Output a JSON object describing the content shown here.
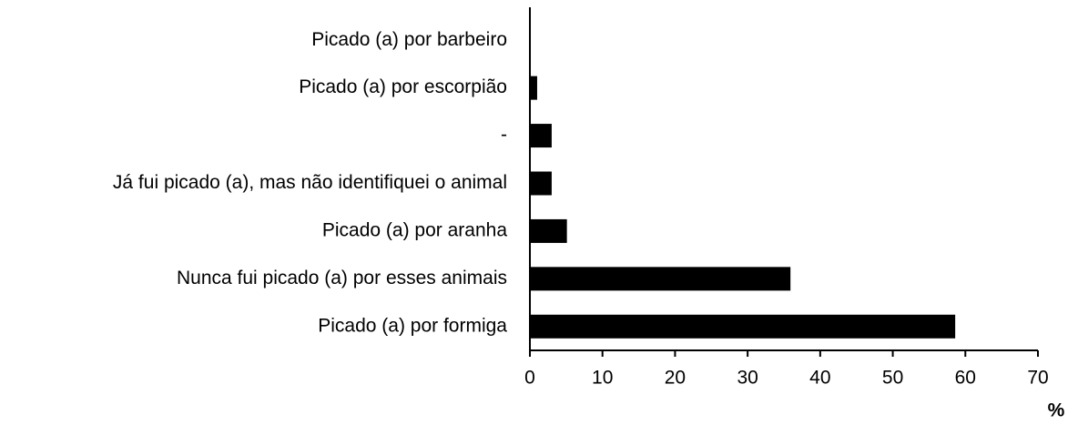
{
  "chart_data": {
    "type": "barh",
    "categories": [
      "Picado (a) por barbeiro",
      "Picado (a) por escorpião",
      "-",
      "Já fui picado (a), mas não identifiquei o animal",
      "Picado (a) por aranha",
      "Nunca fui picado (a) por esses animais",
      "Picado (a) por formiga"
    ],
    "values": [
      0,
      1,
      3,
      3,
      5.1,
      35.9,
      58.6
    ],
    "color": "#000000",
    "xlim": [
      0,
      70
    ],
    "xticks": [
      0,
      10,
      20,
      30,
      40,
      50,
      60,
      70
    ],
    "xlabel": "%",
    "grid": false
  }
}
